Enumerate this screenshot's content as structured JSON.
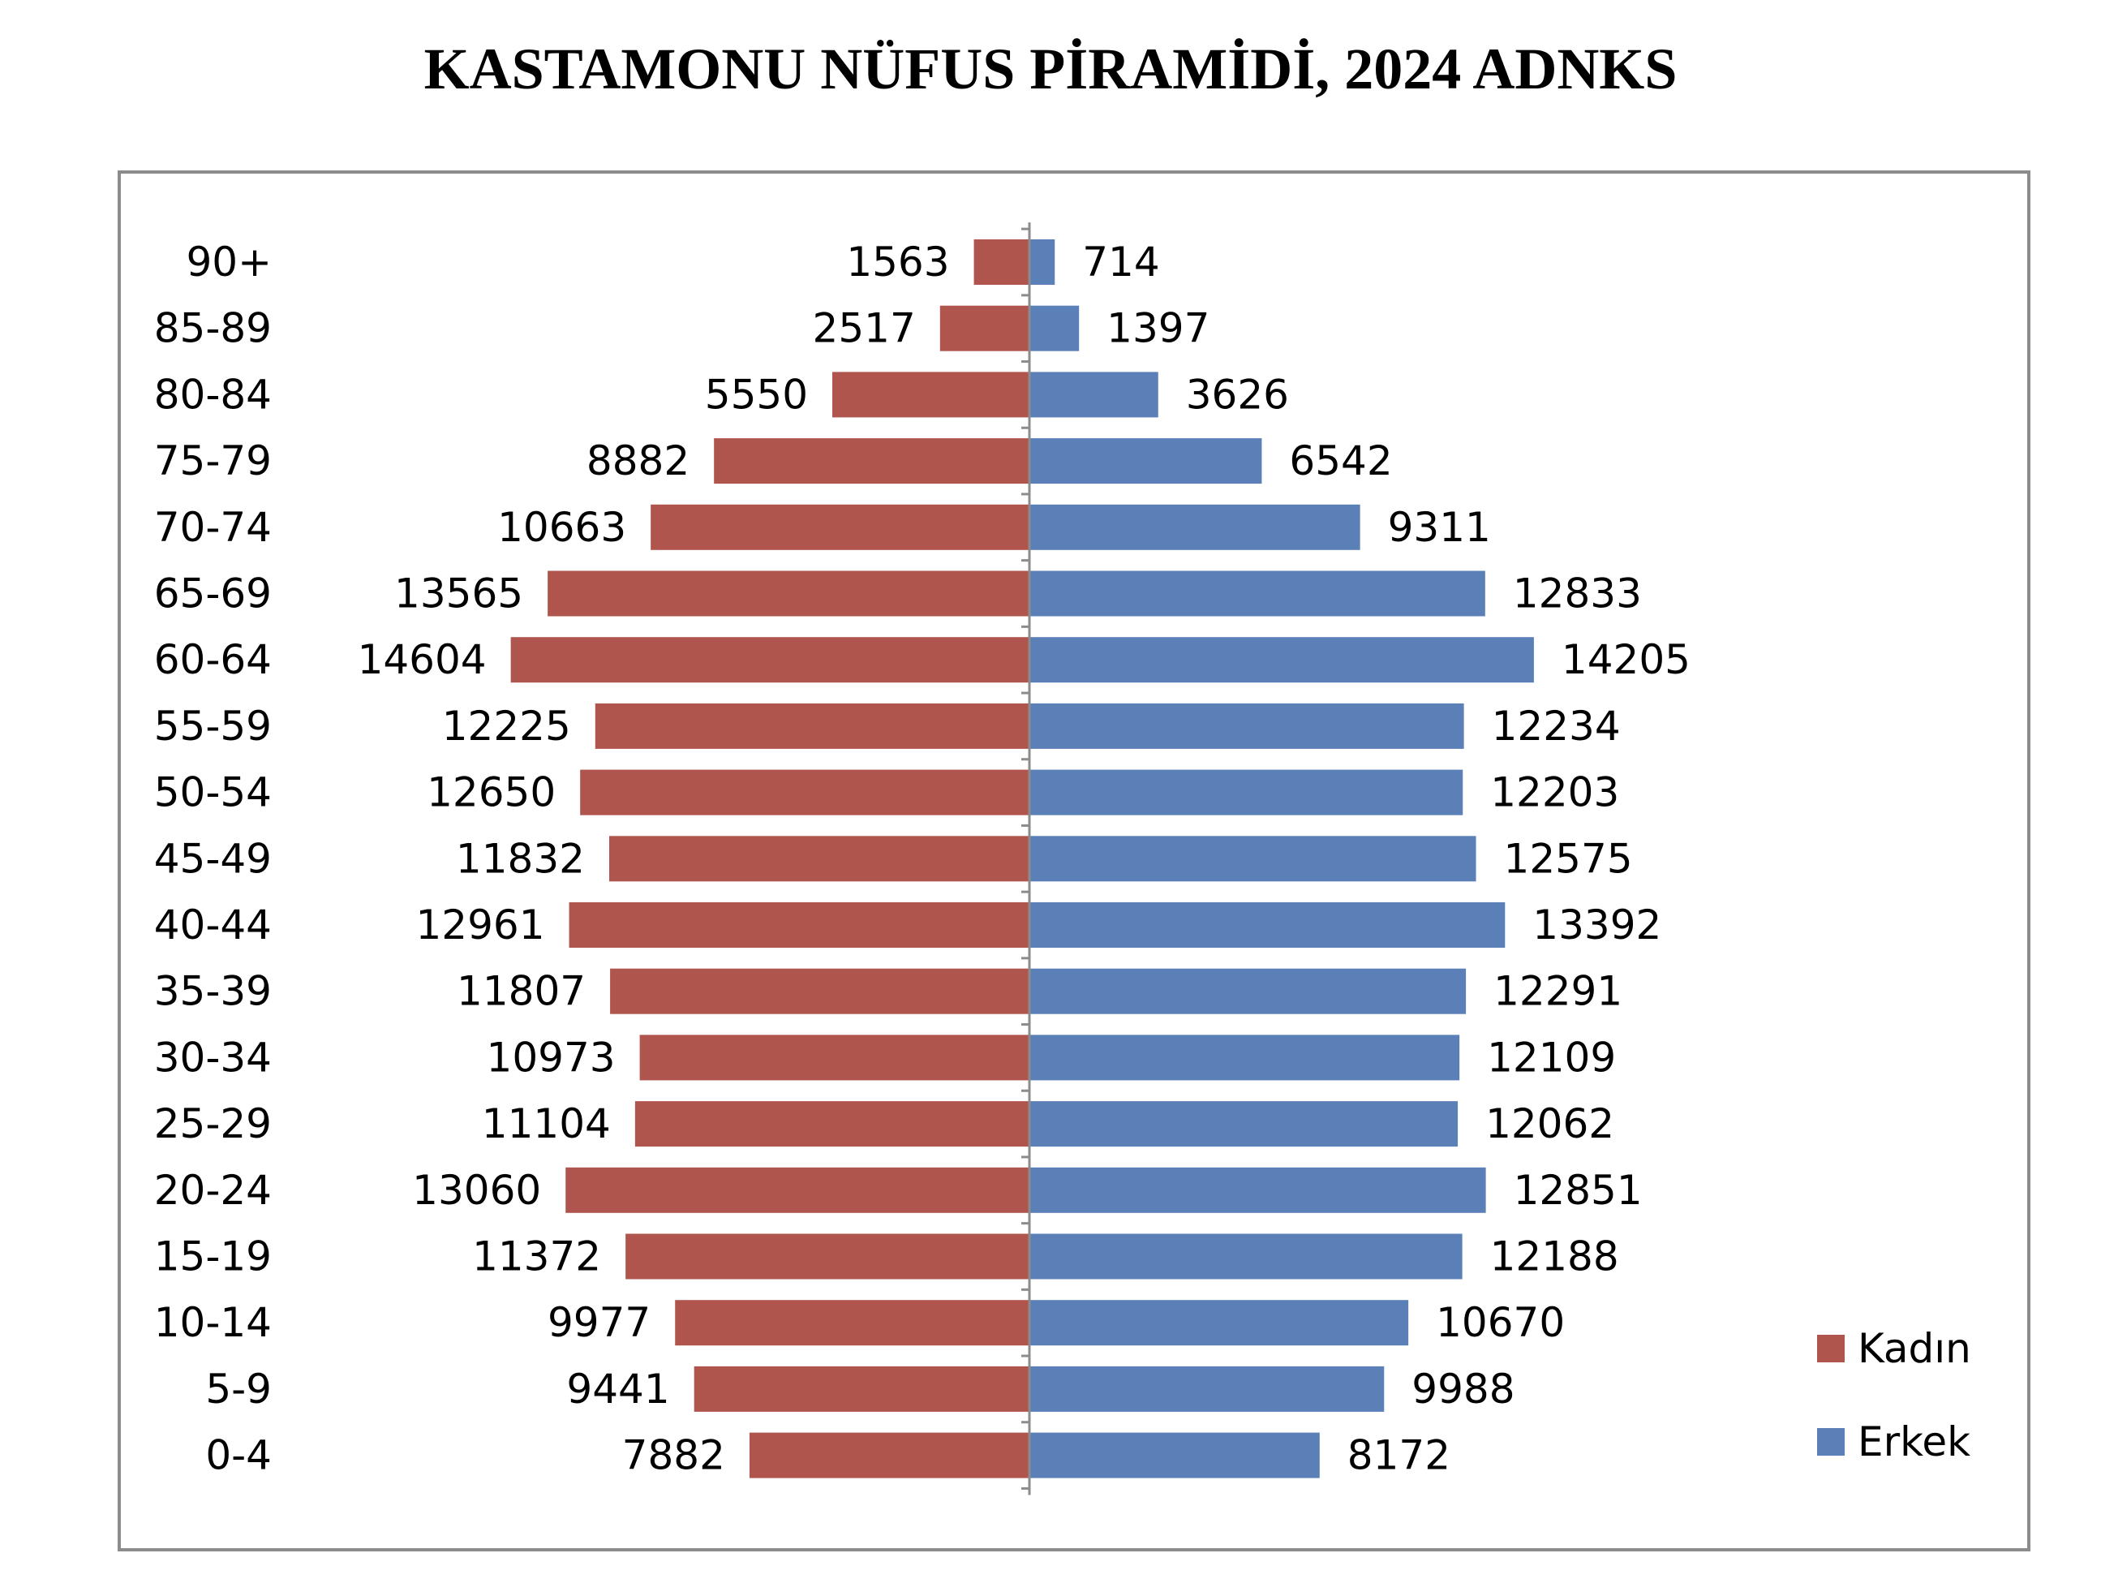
{
  "chart_data": {
    "type": "bar",
    "orientation": "horizontal",
    "title": "KASTAMONU NÜFUS PİRAMİDİ, 2024 ADNKS",
    "categories": [
      "90+",
      "85-89",
      "80-84",
      "75-79",
      "70-74",
      "65-69",
      "60-64",
      "55-59",
      "50-54",
      "45-49",
      "40-44",
      "35-39",
      "30-34",
      "25-29",
      "20-24",
      "15-19",
      "10-14",
      "5-9",
      "0-4"
    ],
    "series": [
      {
        "name": "Kadın",
        "color": "#B0554E",
        "values": [
          1563,
          2517,
          5550,
          8882,
          10663,
          13565,
          14604,
          12225,
          12650,
          11832,
          12961,
          11807,
          10973,
          11104,
          13060,
          11372,
          9977,
          9441,
          7882
        ]
      },
      {
        "name": "Erkek",
        "color": "#5B80B8",
        "values": [
          714,
          1397,
          3626,
          6542,
          9311,
          12833,
          14205,
          12234,
          12203,
          12575,
          13392,
          12291,
          12109,
          12062,
          12851,
          12188,
          10670,
          9988,
          8172
        ]
      }
    ],
    "legend": "right",
    "grid": false
  }
}
